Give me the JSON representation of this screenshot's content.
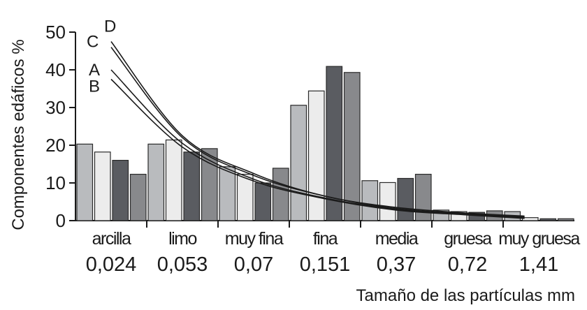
{
  "chart_data": {
    "type": "bar",
    "ylabel": "Componentes edáficos   %",
    "xlabel": "Tamaño de las partículas mm",
    "ylim": [
      0,
      50
    ],
    "yticks": [
      "0",
      "10",
      "20",
      "30",
      "40",
      "50"
    ],
    "categories": [
      "arcilla",
      "limo",
      "muy fina",
      "fina",
      "media",
      "gruesa",
      "muy gruesa"
    ],
    "sizes": [
      "0,024",
      "0,053",
      "0,07",
      "0,151",
      "0,37",
      "0,72",
      "1,41"
    ],
    "series": [
      {
        "values": [
          20.3,
          20.3,
          14.3,
          30.6,
          10.6,
          2.8,
          2.4
        ],
        "color": "#b9bbbe"
      },
      {
        "values": [
          18.2,
          21.4,
          12.3,
          34.4,
          10.1,
          2.4,
          0.8
        ],
        "color": "#ececec"
      },
      {
        "values": [
          16.0,
          18.2,
          10.0,
          40.9,
          11.2,
          2.2,
          0.5
        ],
        "color": "#5a5c61"
      },
      {
        "values": [
          12.3,
          19.1,
          13.9,
          39.3,
          12.3,
          2.6,
          0.5
        ],
        "color": "#88898c"
      }
    ],
    "curves": [
      {
        "label": "D",
        "points": [
          [
            0.5,
            47.5
          ],
          [
            1.5,
            22.5
          ],
          [
            2.5,
            12.5
          ],
          [
            3.5,
            6.5
          ],
          [
            4.5,
            3.5
          ],
          [
            5.5,
            2.0
          ],
          [
            6.3,
            1.2
          ]
        ]
      },
      {
        "label": "C",
        "points": [
          [
            0.5,
            46.0
          ],
          [
            1.5,
            22.0
          ],
          [
            2.5,
            12.0
          ],
          [
            3.5,
            6.5
          ],
          [
            4.5,
            3.2
          ],
          [
            5.5,
            1.8
          ],
          [
            6.3,
            1.0
          ]
        ]
      },
      {
        "label": "A",
        "points": [
          [
            0.5,
            40.0
          ],
          [
            1.5,
            20.5
          ],
          [
            2.5,
            11.0
          ],
          [
            3.5,
            6.0
          ],
          [
            4.5,
            3.0
          ],
          [
            5.5,
            1.6
          ],
          [
            6.3,
            0.8
          ]
        ]
      },
      {
        "label": "B",
        "points": [
          [
            0.5,
            37.5
          ],
          [
            1.5,
            19.5
          ],
          [
            2.5,
            10.5
          ],
          [
            3.5,
            5.8
          ],
          [
            4.5,
            2.8
          ],
          [
            5.5,
            1.5
          ],
          [
            6.3,
            0.6
          ]
        ]
      }
    ],
    "curve_color": "#1a1a1a",
    "grid": false
  }
}
